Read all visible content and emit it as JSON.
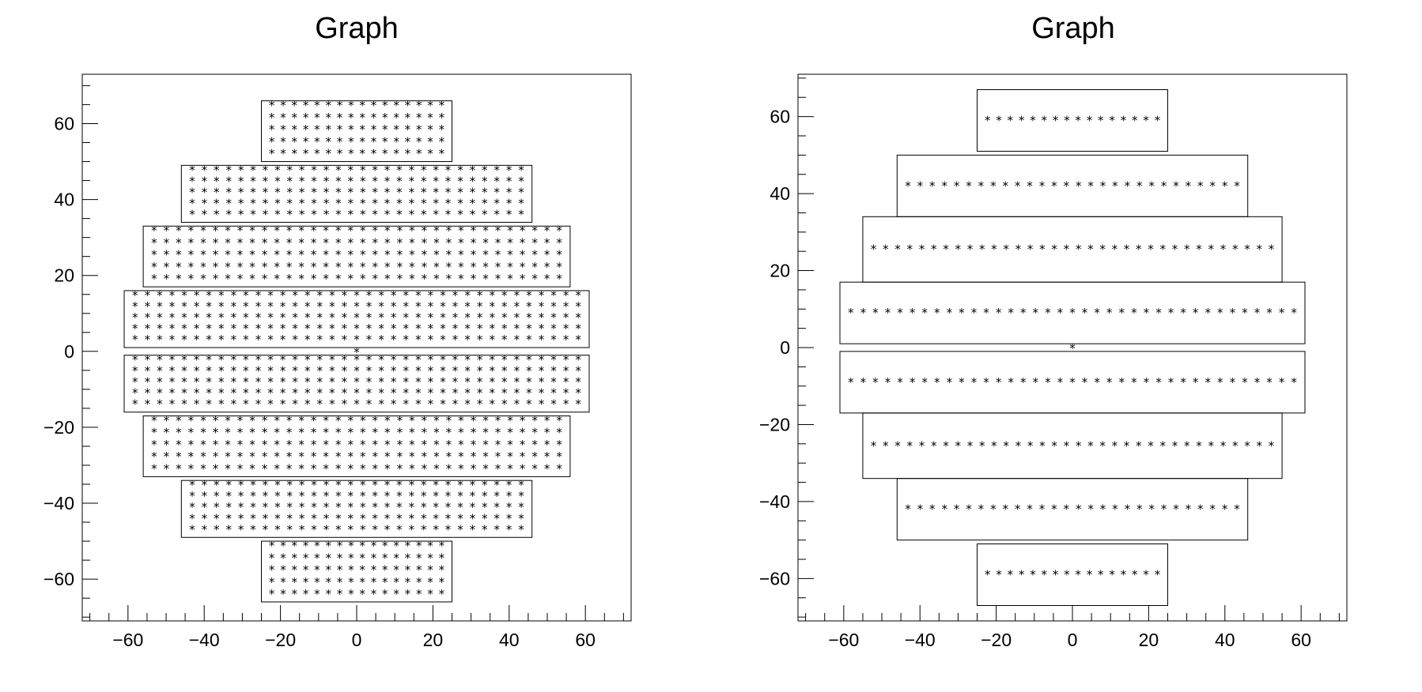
{
  "chart_data": [
    {
      "type": "scatter",
      "title": "Graph",
      "xlabel": "",
      "ylabel": "",
      "xlim": [
        -72,
        72
      ],
      "ylim": [
        -71,
        73
      ],
      "xticks": [
        -60,
        -40,
        -20,
        0,
        20,
        40,
        60
      ],
      "yticks": [
        -60,
        -40,
        -20,
        0,
        20,
        40,
        60
      ],
      "marker": "*",
      "grid": false,
      "center_point": [
        0,
        0
      ],
      "modules": [
        {
          "x": [
            -25,
            25
          ],
          "y": [
            50,
            66
          ],
          "cols": 16,
          "rows": 5
        },
        {
          "x": [
            -46,
            46
          ],
          "y": [
            34,
            49
          ],
          "cols": 28,
          "rows": 5
        },
        {
          "x": [
            -56,
            56
          ],
          "y": [
            17,
            33
          ],
          "cols": 34,
          "rows": 5
        },
        {
          "x": [
            -61,
            61
          ],
          "y": [
            1,
            16
          ],
          "cols": 37,
          "rows": 5
        },
        {
          "x": [
            -61,
            61
          ],
          "y": [
            -16,
            -1
          ],
          "cols": 37,
          "rows": 5
        },
        {
          "x": [
            -56,
            56
          ],
          "y": [
            -33,
            -17
          ],
          "cols": 34,
          "rows": 5
        },
        {
          "x": [
            -46,
            46
          ],
          "y": [
            -49,
            -34
          ],
          "cols": 28,
          "rows": 5
        },
        {
          "x": [
            -25,
            25
          ],
          "y": [
            -66,
            -50
          ],
          "cols": 16,
          "rows": 5
        }
      ]
    },
    {
      "type": "scatter",
      "title": "Graph",
      "xlabel": "",
      "ylabel": "",
      "xlim": [
        -72,
        72
      ],
      "ylim": [
        -71,
        71
      ],
      "xticks": [
        -60,
        -40,
        -20,
        0,
        20,
        40,
        60
      ],
      "yticks": [
        -60,
        -40,
        -20,
        0,
        20,
        40,
        60
      ],
      "marker": "*",
      "grid": false,
      "center_point": [
        0,
        0
      ],
      "modules": [
        {
          "x": [
            -25,
            25
          ],
          "y": [
            51,
            67
          ],
          "cols": 16,
          "rows": 1
        },
        {
          "x": [
            -46,
            46
          ],
          "y": [
            34,
            50
          ],
          "cols": 28,
          "rows": 1
        },
        {
          "x": [
            -55,
            55
          ],
          "y": [
            17,
            34
          ],
          "cols": 34,
          "rows": 1
        },
        {
          "x": [
            -61,
            61
          ],
          "y": [
            1,
            17
          ],
          "cols": 37,
          "rows": 1
        },
        {
          "x": [
            -61,
            61
          ],
          "y": [
            -17,
            -1
          ],
          "cols": 37,
          "rows": 1
        },
        {
          "x": [
            -55,
            55
          ],
          "y": [
            -34,
            -17
          ],
          "cols": 34,
          "rows": 1
        },
        {
          "x": [
            -46,
            46
          ],
          "y": [
            -50,
            -34
          ],
          "cols": 28,
          "rows": 1
        },
        {
          "x": [
            -25,
            25
          ],
          "y": [
            -67,
            -51
          ],
          "cols": 16,
          "rows": 1
        }
      ]
    }
  ]
}
